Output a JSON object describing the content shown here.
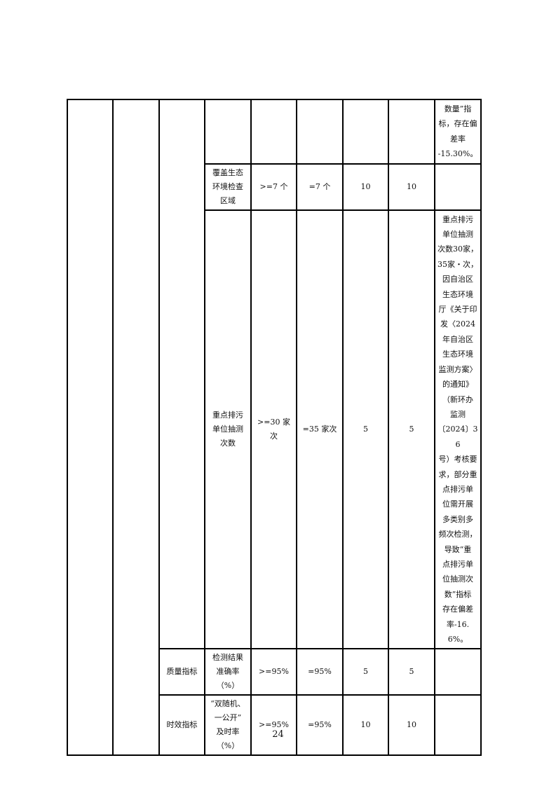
{
  "table": {
    "rows": [
      {
        "indicator": "",
        "level3": "",
        "target": "",
        "actual": "",
        "weight": "",
        "score": "",
        "remark": "数量”指\n标，存在偏\n差率\n-15.30%。"
      },
      {
        "indicator": "覆盖生态\n环境检查\n区域",
        "target": ">=7 个",
        "actual": "=7 个",
        "weight": "10",
        "score": "10",
        "remark": ""
      },
      {
        "indicator": "重点排污\n单位抽测\n次数",
        "target": ">=30 家次",
        "actual": "=35 家次",
        "weight": "5",
        "score": "5",
        "remark": "重点排污\n单位抽测\n次数30家，\n35家・次，\n因自治区\n生态环境\n厅《关于印\n发〈2024\n年自治区\n生态环境\n监测方案〉\n的通知》\n（新环办\n监测\n〔2024〕36\n号）考核要\n求，部分重\n点排污单\n位需开展\n多类别多\n频次检测，\n导致“重\n点排污单\n位抽测次\n数”指标\n存在偏差\n率-16.6%。"
      },
      {
        "level3": "质量指标",
        "indicator": "检测结果\n准确率（%）",
        "target": ">=95%",
        "actual": "=95%",
        "weight": "5",
        "score": "5",
        "remark": ""
      },
      {
        "level3": "时效指标",
        "indicator": "“双随机、\n一公开”\n及时率（%）",
        "target": ">=95%",
        "actual": "=95%",
        "weight": "10",
        "score": "10",
        "remark": ""
      }
    ]
  },
  "page_number": "24"
}
